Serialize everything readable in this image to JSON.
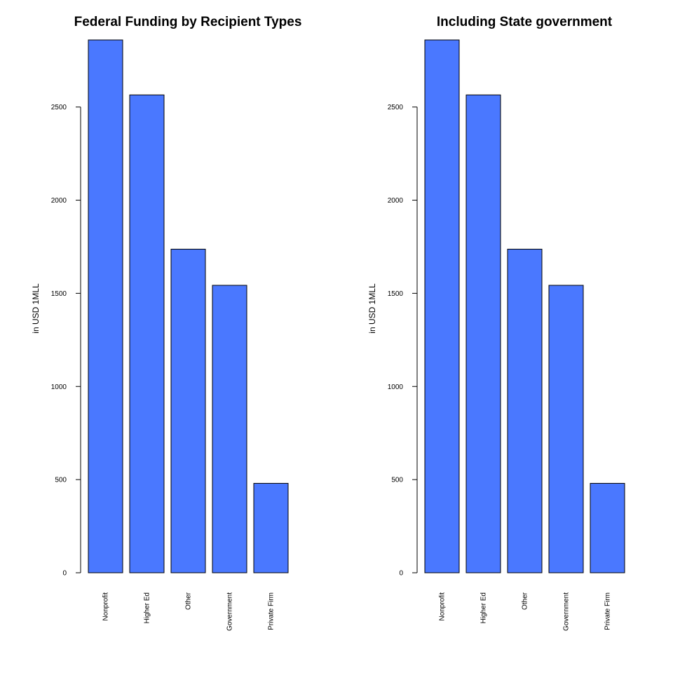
{
  "chart_data": [
    {
      "type": "bar",
      "title": "Federal Funding by Recipient Types",
      "ylabel": "in USD 1MLL",
      "xlabel": "",
      "categories": [
        "Nonprofit",
        "Higher Ed",
        "Other",
        "Government",
        "Private Firm"
      ],
      "values": [
        2860,
        2565,
        1737,
        1543,
        480
      ],
      "yticks": [
        0,
        500,
        1000,
        1500,
        2000,
        2500
      ],
      "ylim": [
        0,
        2860
      ],
      "bar_color": "#4a78ff",
      "grid": false,
      "legend": "none"
    },
    {
      "type": "bar",
      "title": "Including State government",
      "ylabel": "in USD 1MLL",
      "xlabel": "",
      "categories": [
        "Nonprofit",
        "Higher Ed",
        "Other",
        "Government",
        "Private Firm"
      ],
      "values": [
        2860,
        2565,
        1737,
        1543,
        480
      ],
      "yticks": [
        0,
        500,
        1000,
        1500,
        2000,
        2500
      ],
      "ylim": [
        0,
        2860
      ],
      "bar_color": "#4a78ff",
      "grid": false,
      "legend": "none"
    }
  ]
}
